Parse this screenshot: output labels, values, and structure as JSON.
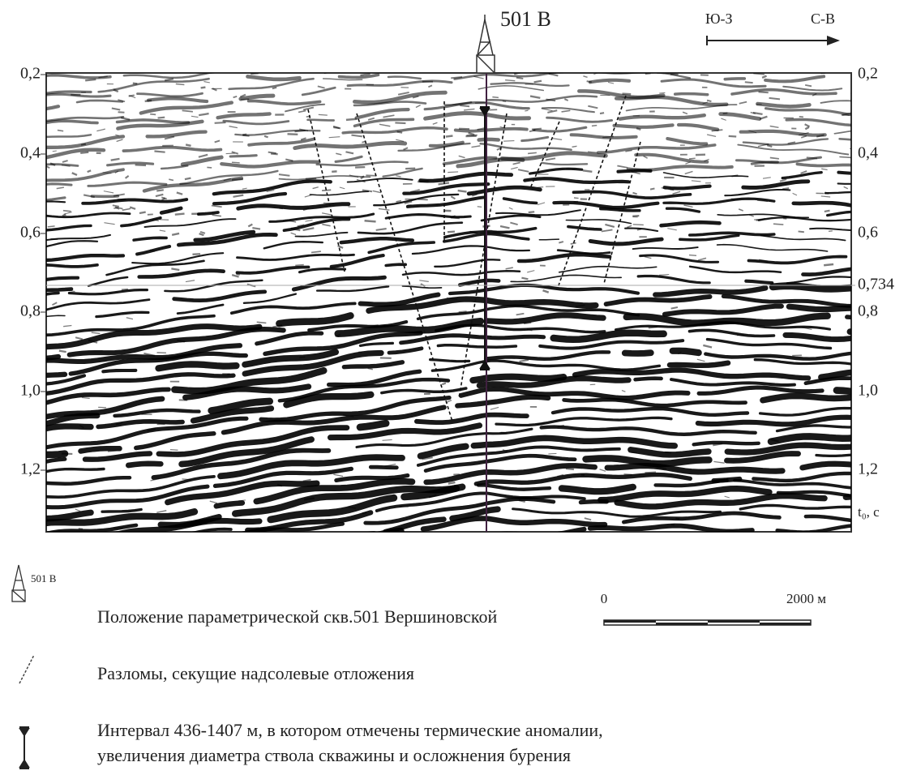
{
  "section": {
    "well_label": "501 В",
    "direction": {
      "from": "Ю-З",
      "to": "С-В"
    },
    "left_axis": [
      "0,2",
      "0,4",
      "0,6",
      "0,8",
      "1,0",
      "1,2"
    ],
    "right_axis": [
      "0,2",
      "0,4",
      "0,6",
      "0,734",
      "0,8",
      "1,0",
      "1,2"
    ],
    "axis_unit": "t₀, с"
  },
  "scale": {
    "start": "0",
    "end": "2000 м"
  },
  "legend": [
    {
      "icon_label": "501 В",
      "text": "Положение параметрической скв.501 Вершиновской"
    },
    {
      "text": "Разломы, секущие надсолевые отложения"
    },
    {
      "lines": [
        "Интервал 436-1407 м, в котором отмечены термические аномалии,",
        "увеличения диаметра ствола скважины и осложнения бурения"
      ]
    }
  ]
}
